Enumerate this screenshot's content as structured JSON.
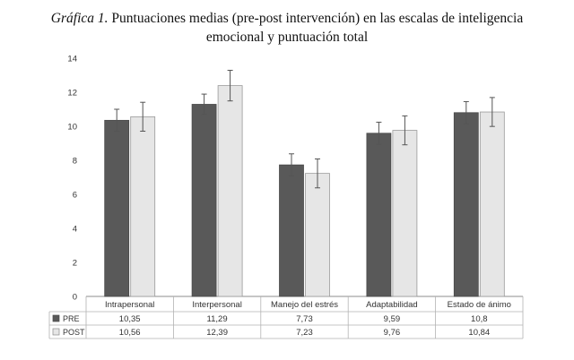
{
  "caption": {
    "label": "Gráfica 1.",
    "text": " Puntuaciones medias (pre-post intervención) en las escalas de inteligencia",
    "text2": "emocional y puntuación total"
  },
  "chart_data": {
    "type": "bar",
    "categories": [
      "Intrapersonal",
      "Interpersonal",
      "Manejo del estrés",
      "Adaptabilidad",
      "Estado de ánimo"
    ],
    "series": [
      {
        "name": "PRE",
        "values": [
          10.35,
          11.29,
          7.73,
          9.59,
          10.8
        ],
        "labels": [
          "10,35",
          "11,29",
          "7,73",
          "9,59",
          "10,8"
        ],
        "error": [
          0.65,
          0.6,
          0.65,
          0.65,
          0.65
        ],
        "color": "#595959"
      },
      {
        "name": "POST",
        "values": [
          10.56,
          12.39,
          7.23,
          9.76,
          10.84
        ],
        "labels": [
          "10,56",
          "12,39",
          "7,23",
          "9,76",
          "10,84"
        ],
        "error": [
          0.85,
          0.9,
          0.85,
          0.85,
          0.85
        ],
        "color": "#e6e6e6"
      }
    ],
    "yticks": [
      "0",
      "2",
      "4",
      "6",
      "8",
      "10",
      "12",
      "14"
    ],
    "ylim": [
      0,
      14
    ],
    "grid": false,
    "legend": "data-table-left"
  }
}
